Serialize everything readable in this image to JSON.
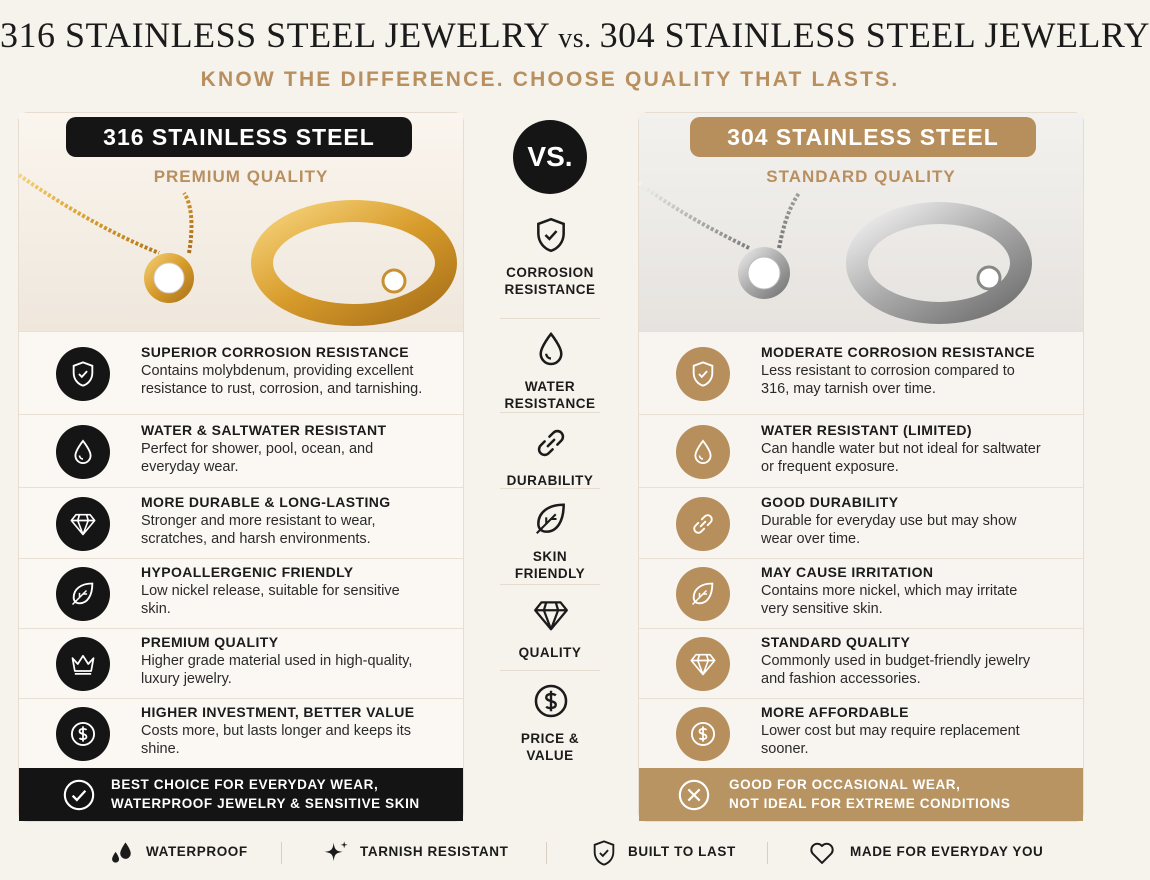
{
  "header": {
    "title_left": "316 STAINLESS STEEL JEWELRY",
    "title_vs": "vs.",
    "title_right": "304 STAINLESS STEEL JEWELRY",
    "subtitle": "KNOW THE DIFFERENCE. CHOOSE QUALITY THAT LASTS."
  },
  "left": {
    "title": "316 STAINLESS STEEL",
    "grade": "PREMIUM QUALITY",
    "items": [
      {
        "title": "SUPERIOR CORROSION RESISTANCE",
        "text": "Contains molybdenum, providing excellent resistance to rust, corrosion, and tarnishing."
      },
      {
        "title": "WATER & SALTWATER RESISTANT",
        "text": "Perfect for shower, pool, ocean, and everyday wear."
      },
      {
        "title": "MORE DURABLE & LONG-LASTING",
        "text": "Stronger and more resistant to wear, scratches, and harsh environments."
      },
      {
        "title": "HYPOALLERGENIC FRIENDLY",
        "text": "Low nickel release, suitable for sensitive skin."
      },
      {
        "title": "PREMIUM QUALITY",
        "text": "Higher grade material used in high-quality, luxury jewelry."
      },
      {
        "title": "HIGHER INVESTMENT, BETTER VALUE",
        "text": "Costs more, but lasts longer and keeps its shine."
      }
    ],
    "verdict": [
      "BEST CHOICE FOR EVERYDAY WEAR,",
      "WATERPROOF JEWELRY & SENSITIVE SKIN"
    ]
  },
  "middle": {
    "badge": "VS.",
    "criteria": [
      "CORROSION RESISTANCE",
      "WATER RESISTANCE",
      "DURABILITY",
      "SKIN FRIENDLY",
      "QUALITY",
      "PRICE & VALUE"
    ]
  },
  "right": {
    "title": "304 STAINLESS STEEL",
    "grade": "STANDARD QUALITY",
    "items": [
      {
        "title": "MODERATE CORROSION RESISTANCE",
        "text": "Less resistant to corrosion compared to 316, may tarnish over time."
      },
      {
        "title": "WATER RESISTANT (LIMITED)",
        "text": "Can handle water but not ideal for saltwater or frequent exposure."
      },
      {
        "title": "GOOD DURABILITY",
        "text": "Durable for everyday use but may show wear over time."
      },
      {
        "title": "MAY CAUSE IRRITATION",
        "text": "Contains more nickel, which may irritate very sensitive skin."
      },
      {
        "title": "STANDARD QUALITY",
        "text": "Commonly used in budget-friendly jewelry and fashion accessories."
      },
      {
        "title": "MORE AFFORDABLE",
        "text": "Lower cost but may require replacement sooner."
      }
    ],
    "verdict": [
      "GOOD FOR OCCASIONAL WEAR,",
      "NOT IDEAL FOR EXTREME CONDITIONS"
    ]
  },
  "footer": [
    "WATERPROOF",
    "TARNISH RESISTANT",
    "BUILT TO LAST",
    "MADE FOR EVERYDAY YOU"
  ]
}
